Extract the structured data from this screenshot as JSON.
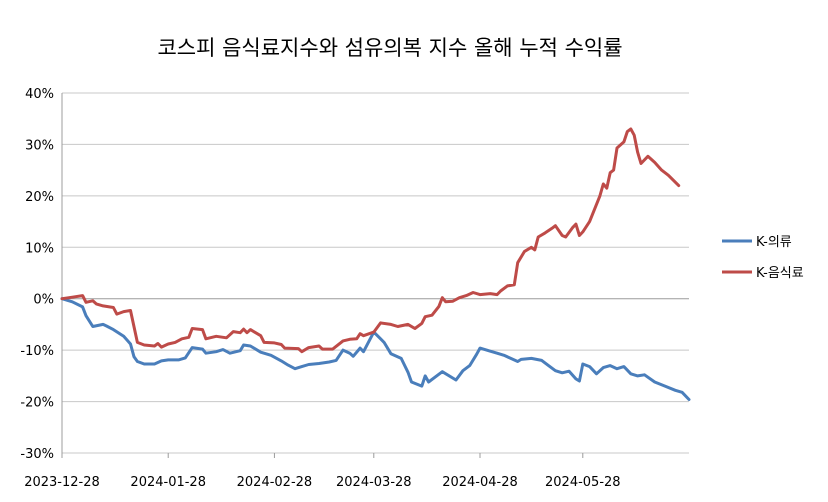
{
  "chart_data": {
    "type": "line",
    "title": "코스피 음식료지수와 섬유의복 지수  올해 누적 수익률",
    "xlabel": "",
    "ylabel": "",
    "ylim": [
      -30,
      40
    ],
    "y_ticks": [
      -30,
      -20,
      -10,
      0,
      10,
      20,
      30,
      40
    ],
    "y_tick_labels": [
      "-30%",
      "-20%",
      "-10%",
      "0%",
      "10%",
      "20%",
      "30%",
      "40%"
    ],
    "x_range": [
      "2023-12-28",
      "2024-06-28"
    ],
    "x_tick_labels": [
      "2023-12-28",
      "2024-01-28",
      "2024-02-28",
      "2024-03-28",
      "2024-04-28",
      "2024-05-28"
    ],
    "grid": "horizontal",
    "legend_position": "right",
    "series": [
      {
        "name": "K-의류",
        "color": "#4a7ebb",
        "points": [
          [
            "2023-12-28",
            0
          ],
          [
            "2023-12-31",
            -0.6
          ],
          [
            "2024-01-03",
            -1.6
          ],
          [
            "2024-01-04",
            -3.3
          ],
          [
            "2024-01-06",
            -5.4
          ],
          [
            "2024-01-09",
            -5.0
          ],
          [
            "2024-01-10",
            -5.3
          ],
          [
            "2024-01-12",
            -6.0
          ],
          [
            "2024-01-15",
            -7.3
          ],
          [
            "2024-01-17",
            -8.8
          ],
          [
            "2024-01-18",
            -11.3
          ],
          [
            "2024-01-19",
            -12.2
          ],
          [
            "2024-01-21",
            -12.7
          ],
          [
            "2024-01-24",
            -12.7
          ],
          [
            "2024-01-26",
            -12.1
          ],
          [
            "2024-01-28",
            -11.9
          ],
          [
            "2024-01-31",
            -11.9
          ],
          [
            "2024-02-02",
            -11.5
          ],
          [
            "2024-02-04",
            -9.5
          ],
          [
            "2024-02-07",
            -9.8
          ],
          [
            "2024-02-08",
            -10.6
          ],
          [
            "2024-02-11",
            -10.3
          ],
          [
            "2024-02-13",
            -9.9
          ],
          [
            "2024-02-15",
            -10.6
          ],
          [
            "2024-02-18",
            -10.1
          ],
          [
            "2024-02-19",
            -9.0
          ],
          [
            "2024-02-21",
            -9.2
          ],
          [
            "2024-02-24",
            -10.4
          ],
          [
            "2024-02-27",
            -11.0
          ],
          [
            "2024-03-01",
            -12.1
          ],
          [
            "2024-03-03",
            -12.9
          ],
          [
            "2024-03-05",
            -13.6
          ],
          [
            "2024-03-07",
            -13.2
          ],
          [
            "2024-03-09",
            -12.8
          ],
          [
            "2024-03-12",
            -12.6
          ],
          [
            "2024-03-15",
            -12.3
          ],
          [
            "2024-03-17",
            -12.0
          ],
          [
            "2024-03-19",
            -10.0
          ],
          [
            "2024-03-21",
            -10.6
          ],
          [
            "2024-03-22",
            -11.2
          ],
          [
            "2024-03-24",
            -9.6
          ],
          [
            "2024-03-25",
            -10.3
          ],
          [
            "2024-03-28",
            -6.5
          ],
          [
            "2024-03-31",
            -8.5
          ],
          [
            "2024-04-02",
            -10.7
          ],
          [
            "2024-04-05",
            -11.6
          ],
          [
            "2024-04-07",
            -14.3
          ],
          [
            "2024-04-08",
            -16.2
          ],
          [
            "2024-04-11",
            -17.0
          ],
          [
            "2024-04-12",
            -15.0
          ],
          [
            "2024-04-13",
            -16.2
          ],
          [
            "2024-04-17",
            -14.2
          ],
          [
            "2024-04-21",
            -15.8
          ],
          [
            "2024-04-23",
            -14.0
          ],
          [
            "2024-04-25",
            -13.0
          ],
          [
            "2024-04-27",
            -10.8
          ],
          [
            "2024-04-28",
            -9.6
          ],
          [
            "2024-05-01",
            -10.2
          ],
          [
            "2024-05-03",
            -10.6
          ],
          [
            "2024-05-05",
            -11.0
          ],
          [
            "2024-05-07",
            -11.6
          ],
          [
            "2024-05-09",
            -12.2
          ],
          [
            "2024-05-10",
            -11.8
          ],
          [
            "2024-05-13",
            -11.6
          ],
          [
            "2024-05-16",
            -12.0
          ],
          [
            "2024-05-18",
            -13.0
          ],
          [
            "2024-05-20",
            -14.0
          ],
          [
            "2024-05-22",
            -14.4
          ],
          [
            "2024-05-24",
            -14.1
          ],
          [
            "2024-05-26",
            -15.6
          ],
          [
            "2024-05-27",
            -16.0
          ],
          [
            "2024-05-28",
            -12.7
          ],
          [
            "2024-05-30",
            -13.2
          ],
          [
            "2024-06-01",
            -14.6
          ],
          [
            "2024-06-03",
            -13.4
          ],
          [
            "2024-06-05",
            -13.0
          ],
          [
            "2024-06-07",
            -13.6
          ],
          [
            "2024-06-09",
            -13.2
          ],
          [
            "2024-06-11",
            -14.6
          ],
          [
            "2024-06-13",
            -15.0
          ],
          [
            "2024-06-15",
            -14.8
          ],
          [
            "2024-06-18",
            -16.2
          ],
          [
            "2024-06-21",
            -17.0
          ],
          [
            "2024-06-24",
            -17.8
          ],
          [
            "2024-06-26",
            -18.2
          ],
          [
            "2024-06-28",
            -19.6
          ]
        ]
      },
      {
        "name": "K-음식료",
        "color": "#be4b48",
        "points": [
          [
            "2023-12-28",
            0
          ],
          [
            "2023-12-31",
            0.3
          ],
          [
            "2024-01-03",
            0.6
          ],
          [
            "2024-01-04",
            -0.7
          ],
          [
            "2024-01-06",
            -0.4
          ],
          [
            "2024-01-07",
            -1.0
          ],
          [
            "2024-01-09",
            -1.4
          ],
          [
            "2024-01-12",
            -1.7
          ],
          [
            "2024-01-13",
            -3.0
          ],
          [
            "2024-01-15",
            -2.5
          ],
          [
            "2024-01-17",
            -2.3
          ],
          [
            "2024-01-19",
            -8.5
          ],
          [
            "2024-01-21",
            -9.0
          ],
          [
            "2024-01-24",
            -9.2
          ],
          [
            "2024-01-25",
            -8.7
          ],
          [
            "2024-01-26",
            -9.4
          ],
          [
            "2024-01-28",
            -8.8
          ],
          [
            "2024-01-30",
            -8.5
          ],
          [
            "2024-02-01",
            -7.8
          ],
          [
            "2024-02-03",
            -7.5
          ],
          [
            "2024-02-04",
            -5.8
          ],
          [
            "2024-02-07",
            -6.0
          ],
          [
            "2024-02-08",
            -7.8
          ],
          [
            "2024-02-11",
            -7.3
          ],
          [
            "2024-02-14",
            -7.6
          ],
          [
            "2024-02-16",
            -6.4
          ],
          [
            "2024-02-18",
            -6.6
          ],
          [
            "2024-02-19",
            -5.9
          ],
          [
            "2024-02-20",
            -6.6
          ],
          [
            "2024-02-21",
            -6.0
          ],
          [
            "2024-02-24",
            -7.2
          ],
          [
            "2024-02-25",
            -8.5
          ],
          [
            "2024-02-28",
            -8.6
          ],
          [
            "2024-03-01",
            -8.9
          ],
          [
            "2024-03-02",
            -9.6
          ],
          [
            "2024-03-06",
            -9.7
          ],
          [
            "2024-03-07",
            -10.3
          ],
          [
            "2024-03-09",
            -9.5
          ],
          [
            "2024-03-12",
            -9.2
          ],
          [
            "2024-03-13",
            -9.8
          ],
          [
            "2024-03-16",
            -9.8
          ],
          [
            "2024-03-19",
            -8.2
          ],
          [
            "2024-03-21",
            -7.9
          ],
          [
            "2024-03-23",
            -7.8
          ],
          [
            "2024-03-24",
            -6.8
          ],
          [
            "2024-03-25",
            -7.2
          ],
          [
            "2024-03-28",
            -6.5
          ],
          [
            "2024-03-30",
            -4.7
          ],
          [
            "2024-04-02",
            -5.0
          ],
          [
            "2024-04-04",
            -5.4
          ],
          [
            "2024-04-07",
            -5.0
          ],
          [
            "2024-04-09",
            -5.8
          ],
          [
            "2024-04-11",
            -4.8
          ],
          [
            "2024-04-12",
            -3.5
          ],
          [
            "2024-04-14",
            -3.2
          ],
          [
            "2024-04-16",
            -1.5
          ],
          [
            "2024-04-17",
            0.2
          ],
          [
            "2024-04-18",
            -0.6
          ],
          [
            "2024-04-20",
            -0.5
          ],
          [
            "2024-04-22",
            0.2
          ],
          [
            "2024-04-24",
            0.6
          ],
          [
            "2024-04-26",
            1.2
          ],
          [
            "2024-04-28",
            0.8
          ],
          [
            "2024-05-01",
            1.0
          ],
          [
            "2024-05-03",
            0.8
          ],
          [
            "2024-05-04",
            1.5
          ],
          [
            "2024-05-06",
            2.5
          ],
          [
            "2024-05-08",
            2.7
          ],
          [
            "2024-05-09",
            7.0
          ],
          [
            "2024-05-11",
            9.2
          ],
          [
            "2024-05-13",
            10.0
          ],
          [
            "2024-05-14",
            9.5
          ],
          [
            "2024-05-15",
            12.0
          ],
          [
            "2024-05-17",
            12.8
          ],
          [
            "2024-05-19",
            13.7
          ],
          [
            "2024-05-20",
            14.2
          ],
          [
            "2024-05-22",
            12.3
          ],
          [
            "2024-05-23",
            12.0
          ],
          [
            "2024-05-25",
            13.8
          ],
          [
            "2024-05-26",
            14.5
          ],
          [
            "2024-05-27",
            12.3
          ],
          [
            "2024-05-28",
            13.0
          ],
          [
            "2024-05-30",
            15.0
          ],
          [
            "2024-06-02",
            20.0
          ],
          [
            "2024-06-03",
            22.3
          ],
          [
            "2024-06-04",
            21.5
          ],
          [
            "2024-06-05",
            24.5
          ],
          [
            "2024-06-06",
            25.0
          ],
          [
            "2024-06-07",
            29.3
          ],
          [
            "2024-06-09",
            30.5
          ],
          [
            "2024-06-10",
            32.5
          ],
          [
            "2024-06-11",
            33.0
          ],
          [
            "2024-06-12",
            31.8
          ],
          [
            "2024-06-13",
            28.5
          ],
          [
            "2024-06-14",
            26.3
          ],
          [
            "2024-06-16",
            27.7
          ],
          [
            "2024-06-18",
            26.5
          ],
          [
            "2024-06-20",
            25.0
          ],
          [
            "2024-06-22",
            24.0
          ],
          [
            "2024-06-25",
            22.0
          ]
        ]
      }
    ]
  }
}
